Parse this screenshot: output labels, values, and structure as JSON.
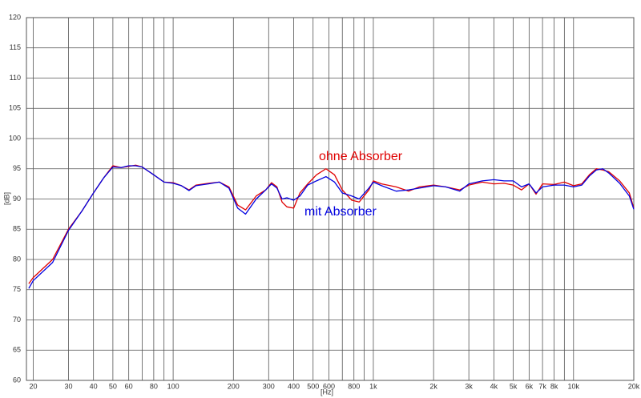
{
  "chart_data": {
    "type": "line",
    "xscale": "log",
    "grid": true,
    "xlabel": "[Hz]",
    "ylabel": "[dB]",
    "xlim": [
      18.5,
      20000
    ],
    "ylim": [
      60,
      120
    ],
    "yticks": [
      60,
      65,
      70,
      75,
      80,
      85,
      90,
      95,
      100,
      105,
      110,
      115,
      120
    ],
    "xticks": [
      20,
      30,
      40,
      50,
      60,
      80,
      100,
      200,
      300,
      400,
      500,
      600,
      800,
      {
        "value": 1000,
        "label": "1k"
      },
      {
        "value": 2000,
        "label": "2k"
      },
      {
        "value": 3000,
        "label": "3k"
      },
      {
        "value": 4000,
        "label": "4k"
      },
      {
        "value": 5000,
        "label": "5k"
      },
      {
        "value": 6000,
        "label": "6k"
      },
      {
        "value": 7000,
        "label": "7k"
      },
      {
        "value": 8000,
        "label": "8k"
      },
      {
        "value": 10000,
        "label": "10k"
      },
      {
        "value": 20000,
        "label": "20k"
      }
    ],
    "xminor": [
      70,
      90,
      700,
      900,
      9000
    ],
    "x": [
      19,
      20,
      25,
      30,
      35,
      40,
      45,
      50,
      55,
      60,
      65,
      70,
      80,
      90,
      100,
      110,
      120,
      130,
      150,
      170,
      190,
      210,
      230,
      260,
      290,
      310,
      330,
      350,
      370,
      400,
      430,
      470,
      520,
      580,
      640,
      700,
      780,
      850,
      950,
      1000,
      1100,
      1300,
      1500,
      1700,
      2000,
      2300,
      2700,
      3000,
      3500,
      4000,
      4500,
      5000,
      5500,
      6000,
      6500,
      7000,
      8000,
      9000,
      10000,
      11000,
      12000,
      13000,
      14000,
      15000,
      17000,
      19000,
      20000
    ],
    "series": [
      {
        "name": "ohne Absorber",
        "color": "#e00000",
        "values": [
          76,
          77,
          80,
          85,
          88,
          91,
          93.5,
          95.5,
          95.2,
          95.4,
          95.6,
          95.3,
          94,
          92.8,
          92.7,
          92.2,
          91.5,
          92.3,
          92.6,
          92.8,
          92,
          89,
          88.2,
          90.5,
          91.5,
          92.7,
          92,
          89.5,
          88.7,
          88.5,
          91,
          92.5,
          94,
          95,
          94,
          91.5,
          89.8,
          89.5,
          91.5,
          93,
          92.5,
          92,
          91.3,
          92,
          92.3,
          92,
          91.5,
          92.3,
          92.8,
          92.5,
          92.6,
          92.3,
          91.5,
          92.5,
          90.8,
          92.5,
          92.4,
          92.8,
          92.2,
          92.5,
          94,
          95,
          94.8,
          94.5,
          93,
          91,
          88.5
        ]
      },
      {
        "name": "mit Absorber",
        "color": "#0000e0",
        "values": [
          75.2,
          76.5,
          79.5,
          84.8,
          88,
          91,
          93.5,
          95.3,
          95.2,
          95.5,
          95.5,
          95.3,
          94,
          92.8,
          92.6,
          92.2,
          91.4,
          92.2,
          92.5,
          92.8,
          91.8,
          88.5,
          87.5,
          90,
          91.5,
          92.5,
          91.8,
          90,
          90.2,
          89.8,
          90.5,
          92.3,
          93,
          93.7,
          92.8,
          91,
          90.5,
          90,
          91.8,
          92.8,
          92.2,
          91.3,
          91.5,
          91.8,
          92.2,
          92,
          91.3,
          92.5,
          93,
          93.2,
          93,
          93,
          92,
          92.5,
          91,
          92,
          92.3,
          92.3,
          92,
          92.3,
          93.8,
          94.8,
          95,
          94.3,
          92.6,
          90.5,
          88.3
        ]
      }
    ]
  }
}
